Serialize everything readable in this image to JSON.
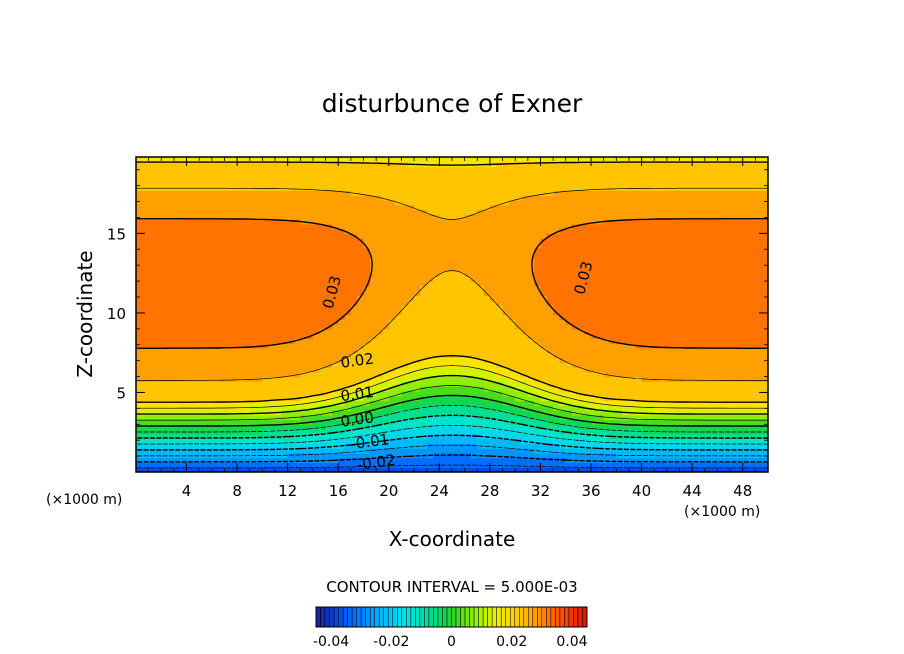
{
  "chart_data": {
    "type": "heatmap",
    "title": "disturbunce of Exner",
    "xlabel": "X-coordinate",
    "ylabel": "Z-coordinate",
    "x_unit_note": "(×1000 m)",
    "y_unit_note": "(×1000 m)",
    "xlim": [
      0,
      50
    ],
    "ylim": [
      0,
      19.8
    ],
    "x_ticks": [
      4,
      8,
      12,
      16,
      20,
      24,
      28,
      32,
      36,
      40,
      44,
      48
    ],
    "y_ticks": [
      5,
      10,
      15
    ],
    "contour_interval_text": "CONTOUR INTERVAL = 5.000E-03",
    "contour_labels": [
      {
        "text": "0.03",
        "x": 15.5,
        "z": 11.3
      },
      {
        "text": "0.03",
        "x": 35.4,
        "z": 12.2
      },
      {
        "text": "0.02",
        "x": 17.5,
        "z": 7.0
      },
      {
        "text": "0.01",
        "x": 17.5,
        "z": 4.9
      },
      {
        "text": "0.00",
        "x": 17.5,
        "z": 3.3
      },
      {
        "text": "-0.01",
        "x": 18.5,
        "z": 1.9
      },
      {
        "text": "-0.02",
        "x": 19.0,
        "z": 0.6
      }
    ],
    "colorbar": {
      "range": [
        -0.045,
        0.045
      ],
      "tick_labels": [
        "-0.04",
        "-0.02",
        "0",
        "0.02",
        "0.04"
      ],
      "tick_values": [
        -0.04,
        -0.02,
        0,
        0.02,
        0.04
      ]
    },
    "grid": false,
    "legend": "none"
  }
}
